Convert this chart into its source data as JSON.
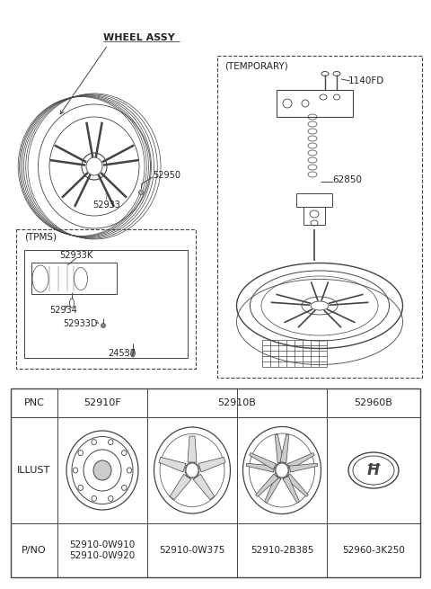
{
  "bg_color": "#ffffff",
  "line_color": "#444444",
  "text_color": "#222222",
  "fig_width": 4.8,
  "fig_height": 6.55,
  "dpi": 100,
  "wheel_assy_label": "WHEEL ASSY",
  "temporary_label": "(TEMPORARY)",
  "tpms_label": "(TPMS)",
  "labels": {
    "52950": "52950",
    "52933": "52933",
    "52933K": "52933K",
    "52934": "52934",
    "52933D": "52933D",
    "24537": "24537",
    "1140FD": "1140FD",
    "62850": "62850"
  },
  "table_pnc_row": [
    "PNC",
    "52910F",
    "52910B",
    "",
    "52960B"
  ],
  "table_illust_label": "ILLUST",
  "table_pno_label": "P/NO",
  "table_pno": [
    "52910-0W910\n52910-0W920",
    "52910-0W375",
    "52910-2B385",
    "52960-3K250"
  ]
}
